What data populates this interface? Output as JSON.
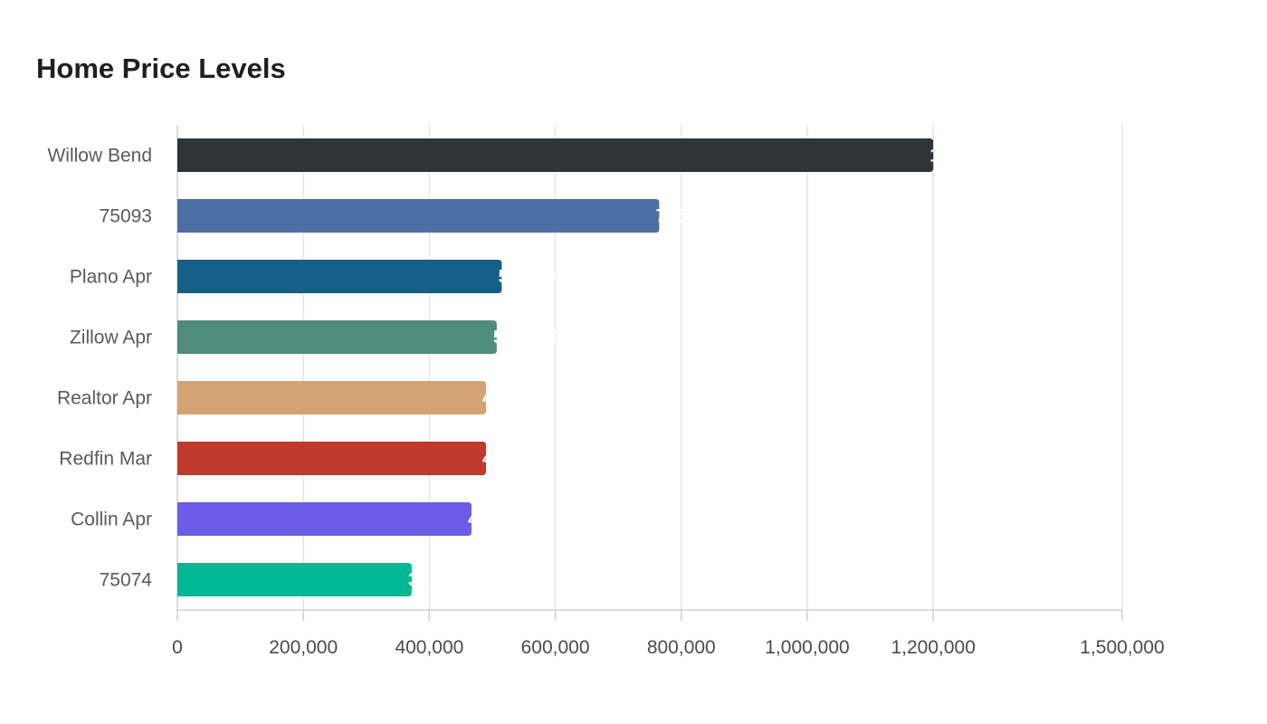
{
  "chart_data": {
    "type": "bar",
    "orientation": "horizontal",
    "title": "Home Price Levels",
    "xlabel": "",
    "ylabel": "",
    "categories": [
      "Willow Bend",
      "75093",
      "Plano Apr",
      "Zillow Apr",
      "Realtor Apr",
      "Redfin Mar",
      "Collin Apr",
      "75074"
    ],
    "values": [
      1200000,
      765000,
      515000,
      507000,
      490000,
      490000,
      467000,
      372000
    ],
    "data_labels": [
      "1,200,000",
      "765,000",
      "515,000",
      "507,000",
      "490,000",
      "490,000",
      "467,000",
      "372,000"
    ],
    "colors": [
      "#2d3538",
      "#4a6fa5",
      "#166088",
      "#4f8c7b",
      "#d4a373",
      "#c0392b",
      "#6c5ce7",
      "#00b894"
    ],
    "xlim": [
      0,
      1500000
    ],
    "x_ticks": [
      0,
      200000,
      400000,
      600000,
      800000,
      1000000,
      1200000,
      1500000
    ],
    "x_tick_labels": [
      "0",
      "200,000",
      "400,000",
      "600,000",
      "800,000",
      "1,000,000",
      "1,200,000",
      "1,500,000"
    ],
    "grid": true,
    "legend": "none"
  }
}
